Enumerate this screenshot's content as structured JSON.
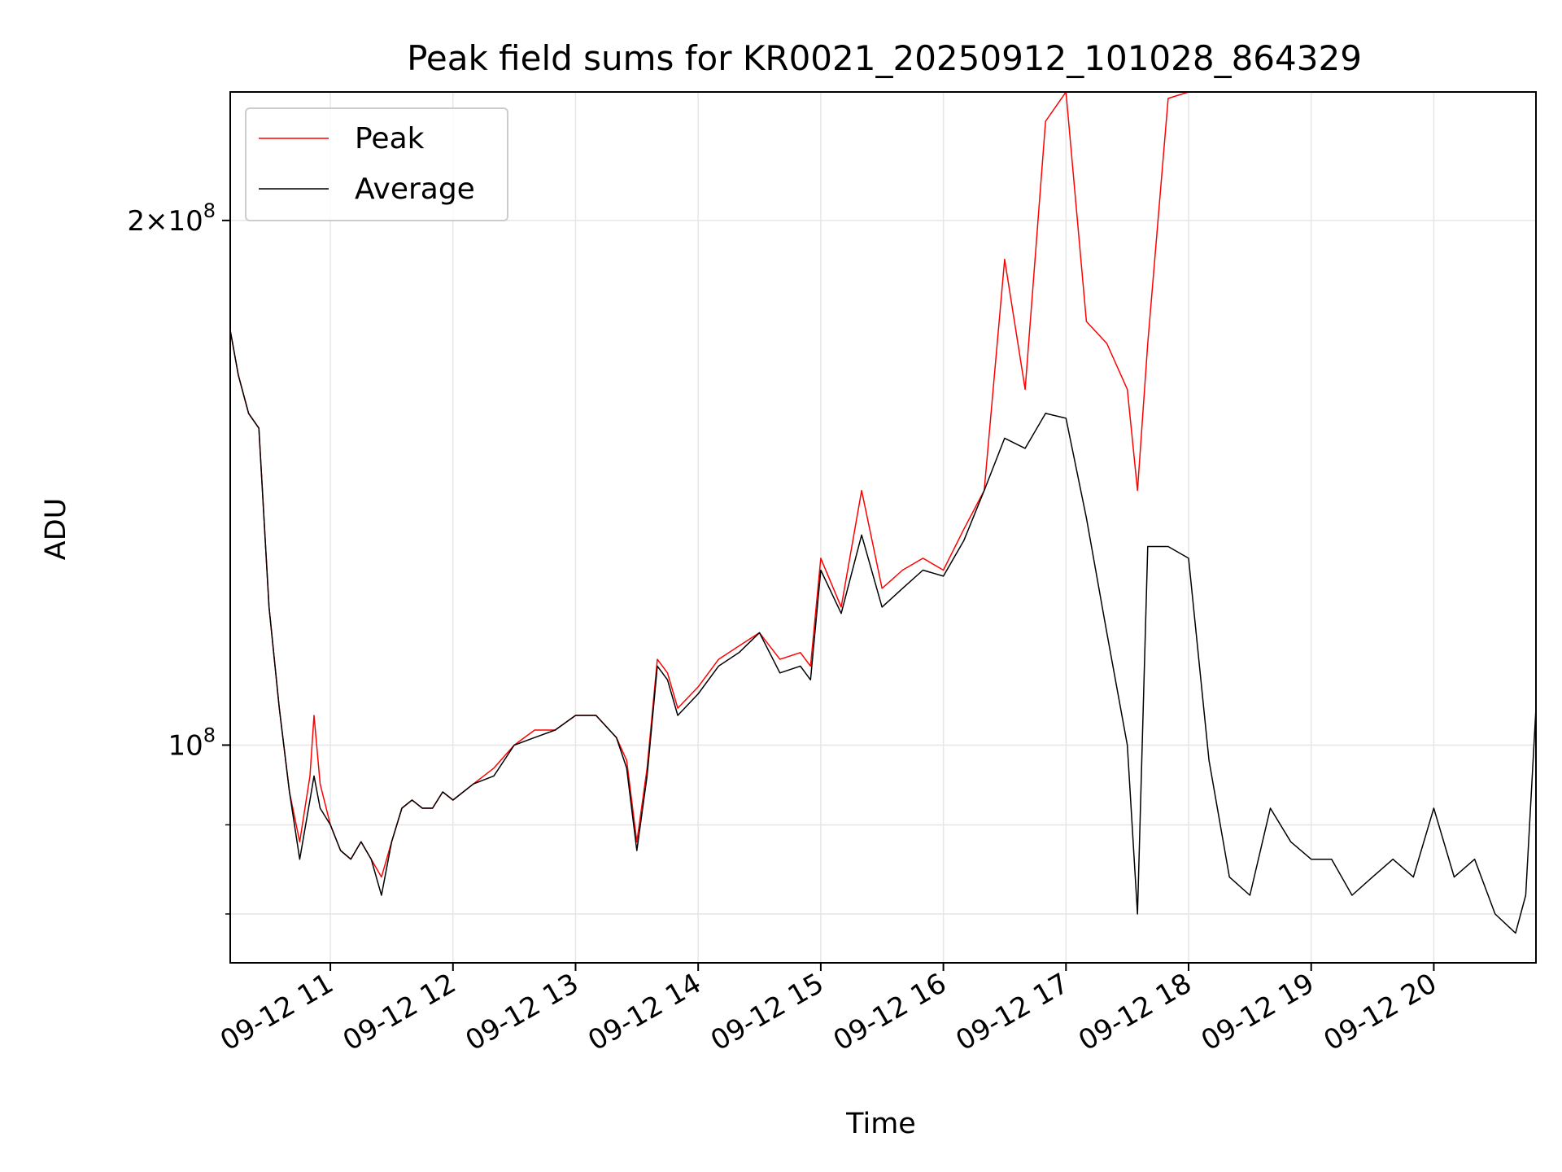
{
  "chart_data": {
    "type": "line",
    "title": "Peak field sums for KR0021_20250912_101028_864329",
    "xlabel": "Time",
    "ylabel": "ADU",
    "y_scale": "log",
    "grid": true,
    "legend_position": "top-left",
    "xlim": [
      "09-12 10:11",
      "09-12 20:50"
    ],
    "ylim": [
      75000000,
      237000000
    ],
    "x_ticks": [
      {
        "value": "09-12 11:00",
        "label": "09-12 11"
      },
      {
        "value": "09-12 12:00",
        "label": "09-12 12"
      },
      {
        "value": "09-12 13:00",
        "label": "09-12 13"
      },
      {
        "value": "09-12 14:00",
        "label": "09-12 14"
      },
      {
        "value": "09-12 15:00",
        "label": "09-12 15"
      },
      {
        "value": "09-12 16:00",
        "label": "09-12 16"
      },
      {
        "value": "09-12 17:00",
        "label": "09-12 17"
      },
      {
        "value": "09-12 18:00",
        "label": "09-12 18"
      },
      {
        "value": "09-12 19:00",
        "label": "09-12 19"
      },
      {
        "value": "09-12 20:00",
        "label": "09-12 20"
      }
    ],
    "y_ticks": [
      {
        "value": 200000000,
        "label_base": "2×10",
        "label_exp": "8"
      },
      {
        "value": 100000000,
        "label_base": "10",
        "label_exp": "8"
      }
    ],
    "y_minor_ticks": [
      90000000,
      80000000
    ],
    "series": [
      {
        "name": "Peak",
        "color": "#ff0000",
        "x": [
          "09-12 10:11",
          "09-12 10:15",
          "09-12 10:20",
          "09-12 10:25",
          "09-12 10:30",
          "09-12 10:35",
          "09-12 10:40",
          "09-12 10:45",
          "09-12 10:50",
          "09-12 10:52",
          "09-12 10:55",
          "09-12 11:00",
          "09-12 11:05",
          "09-12 11:10",
          "09-12 11:15",
          "09-12 11:20",
          "09-12 11:25",
          "09-12 11:30",
          "09-12 11:35",
          "09-12 11:40",
          "09-12 11:45",
          "09-12 11:50",
          "09-12 11:55",
          "09-12 12:00",
          "09-12 12:10",
          "09-12 12:20",
          "09-12 12:30",
          "09-12 12:40",
          "09-12 12:50",
          "09-12 13:00",
          "09-12 13:10",
          "09-12 13:20",
          "09-12 13:25",
          "09-12 13:30",
          "09-12 13:35",
          "09-12 13:40",
          "09-12 13:45",
          "09-12 13:50",
          "09-12 14:00",
          "09-12 14:10",
          "09-12 14:20",
          "09-12 14:30",
          "09-12 14:40",
          "09-12 14:50",
          "09-12 14:55",
          "09-12 15:00",
          "09-12 15:10",
          "09-12 15:20",
          "09-12 15:30",
          "09-12 15:40",
          "09-12 15:50",
          "09-12 16:00",
          "09-12 16:10",
          "09-12 16:20",
          "09-12 16:30",
          "09-12 16:40",
          "09-12 16:50",
          "09-12 17:00",
          "09-12 17:10",
          "09-12 17:20",
          "09-12 17:30",
          "09-12 17:35",
          "09-12 17:40",
          "09-12 17:50",
          "09-12 18:00",
          "09-12 18:10",
          "09-12 18:20",
          "09-12 18:30",
          "09-12 18:40",
          "09-12 18:50",
          "09-12 19:00",
          "09-12 19:10",
          "09-12 19:20",
          "09-12 19:30",
          "09-12 19:40",
          "09-12 19:50",
          "09-12 20:00",
          "09-12 20:10",
          "09-12 20:20",
          "09-12 20:30",
          "09-12 20:40",
          "09-12 20:45",
          "09-12 20:50"
        ],
        "values": [
          173000000,
          163000000,
          155000000,
          152000000,
          120000000,
          105000000,
          94000000,
          88000000,
          96000000,
          104000000,
          95000000,
          90000000,
          87000000,
          86000000,
          88000000,
          86000000,
          84000000,
          88000000,
          92000000,
          93000000,
          92000000,
          92000000,
          94000000,
          93000000,
          95000000,
          97000000,
          100000000,
          102000000,
          102000000,
          104000000,
          104000000,
          101000000,
          98000000,
          88000000,
          97000000,
          112000000,
          110000000,
          105000000,
          108000000,
          112000000,
          114000000,
          116000000,
          112000000,
          113000000,
          111000000,
          128000000,
          120000000,
          140000000,
          123000000,
          126000000,
          128000000,
          126000000,
          133000000,
          140000000,
          190000000,
          160000000,
          228000000,
          237000000,
          175000000,
          170000000,
          160000000,
          140000000,
          170000000,
          235000000,
          237000000,
          237000000,
          237000000,
          237000000,
          237000000,
          237000000,
          237000000,
          237000000,
          237000000,
          237000000,
          237000000,
          237000000,
          237000000,
          237000000,
          237000000,
          237000000,
          237000000,
          237000000,
          237000000
        ]
      },
      {
        "name": "Average",
        "color": "#000000",
        "x": [
          "09-12 10:11",
          "09-12 10:15",
          "09-12 10:20",
          "09-12 10:25",
          "09-12 10:30",
          "09-12 10:35",
          "09-12 10:40",
          "09-12 10:45",
          "09-12 10:50",
          "09-12 10:52",
          "09-12 10:55",
          "09-12 11:00",
          "09-12 11:05",
          "09-12 11:10",
          "09-12 11:15",
          "09-12 11:20",
          "09-12 11:25",
          "09-12 11:30",
          "09-12 11:35",
          "09-12 11:40",
          "09-12 11:45",
          "09-12 11:50",
          "09-12 11:55",
          "09-12 12:00",
          "09-12 12:10",
          "09-12 12:20",
          "09-12 12:30",
          "09-12 12:40",
          "09-12 12:50",
          "09-12 13:00",
          "09-12 13:10",
          "09-12 13:20",
          "09-12 13:25",
          "09-12 13:30",
          "09-12 13:35",
          "09-12 13:40",
          "09-12 13:45",
          "09-12 13:50",
          "09-12 14:00",
          "09-12 14:10",
          "09-12 14:20",
          "09-12 14:30",
          "09-12 14:40",
          "09-12 14:50",
          "09-12 14:55",
          "09-12 15:00",
          "09-12 15:10",
          "09-12 15:20",
          "09-12 15:30",
          "09-12 15:40",
          "09-12 15:50",
          "09-12 16:00",
          "09-12 16:10",
          "09-12 16:20",
          "09-12 16:30",
          "09-12 16:40",
          "09-12 16:50",
          "09-12 17:00",
          "09-12 17:10",
          "09-12 17:20",
          "09-12 17:30",
          "09-12 17:35",
          "09-12 17:40",
          "09-12 17:50",
          "09-12 18:00",
          "09-12 18:10",
          "09-12 18:20",
          "09-12 18:30",
          "09-12 18:40",
          "09-12 18:50",
          "09-12 19:00",
          "09-12 19:10",
          "09-12 19:20",
          "09-12 19:30",
          "09-12 19:40",
          "09-12 19:50",
          "09-12 20:00",
          "09-12 20:10",
          "09-12 20:20",
          "09-12 20:30",
          "09-12 20:40",
          "09-12 20:45",
          "09-12 20:50"
        ],
        "values": [
          173000000,
          163000000,
          155000000,
          152000000,
          120000000,
          105000000,
          94000000,
          86000000,
          93000000,
          96000000,
          92000000,
          90000000,
          87000000,
          86000000,
          88000000,
          86000000,
          82000000,
          88000000,
          92000000,
          93000000,
          92000000,
          92000000,
          94000000,
          93000000,
          95000000,
          96000000,
          100000000,
          101000000,
          102000000,
          104000000,
          104000000,
          101000000,
          97000000,
          87000000,
          96000000,
          111000000,
          109000000,
          104000000,
          107000000,
          111000000,
          113000000,
          116000000,
          110000000,
          111000000,
          109000000,
          126000000,
          119000000,
          132000000,
          120000000,
          123000000,
          126000000,
          125000000,
          131000000,
          140000000,
          150000000,
          148000000,
          155000000,
          154000000,
          135000000,
          116000000,
          100000000,
          80000000,
          130000000,
          130000000,
          128000000,
          98000000,
          84000000,
          82000000,
          92000000,
          88000000,
          86000000,
          86000000,
          82000000,
          84000000,
          86000000,
          84000000,
          92000000,
          84000000,
          86000000,
          80000000,
          78000000,
          82000000,
          105000000
        ]
      }
    ]
  }
}
